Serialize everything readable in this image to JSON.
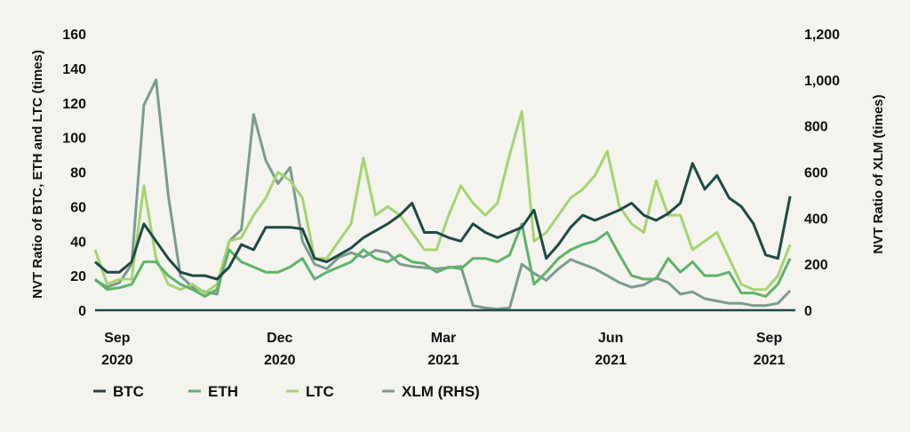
{
  "chart_data": {
    "type": "line",
    "title": "",
    "xlabel": "",
    "ylabel": "NVT Ratio of BTC, ETH and LTC (times)",
    "y2label": "NVT Ratio of XLM (times)",
    "ylim": [
      0,
      160
    ],
    "y2lim": [
      0,
      1200
    ],
    "xlim": [
      0,
      401
    ],
    "x_unit": "days from start of series",
    "yticks": [
      "0",
      "20",
      "40",
      "60",
      "80",
      "100",
      "120",
      "140",
      "160"
    ],
    "y2ticks": [
      "0",
      "200",
      "400",
      "600",
      "800",
      "1,000",
      "1,200"
    ],
    "xticks": [
      {
        "x": 12.7,
        "line1": "Sep",
        "line2": "2020"
      },
      {
        "x": 106,
        "line1": "Dec",
        "line2": "2020"
      },
      {
        "x": 200,
        "line1": "Mar",
        "line2": "2021"
      },
      {
        "x": 296,
        "line1": "Jun",
        "line2": "2021"
      },
      {
        "x": 387,
        "line1": "Sep",
        "line2": "2021"
      }
    ],
    "grid": false,
    "legend_position": "bottom-left",
    "x": [
      0,
      7,
      14,
      21,
      28,
      35,
      42,
      49,
      56,
      63,
      70,
      77,
      84,
      91,
      98,
      105,
      112,
      119,
      126,
      133,
      140,
      147,
      154,
      161,
      168,
      175,
      182,
      189,
      196,
      203,
      210,
      217,
      224,
      231,
      238,
      245,
      252,
      259,
      266,
      273,
      280,
      287,
      294,
      301,
      308,
      315,
      322,
      329,
      336,
      343,
      350,
      357,
      364,
      371,
      378,
      385,
      392,
      399
    ],
    "series": [
      {
        "name": "BTC",
        "axis": "left",
        "color": "#1e4a44",
        "values": [
          28,
          22,
          22,
          28,
          50,
          40,
          30,
          22,
          20,
          20,
          18,
          25,
          38,
          35,
          48,
          48,
          48,
          47,
          30,
          28,
          32,
          36,
          42,
          46,
          50,
          55,
          62,
          45,
          45,
          42,
          40,
          50,
          45,
          42,
          45,
          48,
          58,
          30,
          38,
          48,
          55,
          52,
          55,
          58,
          62,
          55,
          52,
          56,
          62,
          85,
          70,
          78,
          65,
          60,
          50,
          32,
          30,
          66
        ]
      },
      {
        "name": "ETH",
        "axis": "left",
        "color": "#5db46a",
        "values": [
          18,
          12,
          13,
          15,
          28,
          28,
          20,
          15,
          12,
          8,
          12,
          35,
          28,
          25,
          22,
          22,
          25,
          30,
          18,
          22,
          25,
          28,
          35,
          30,
          28,
          32,
          28,
          27,
          22,
          25,
          24,
          30,
          30,
          28,
          32,
          50,
          15,
          22,
          30,
          35,
          38,
          40,
          45,
          32,
          20,
          18,
          18,
          30,
          22,
          28,
          20,
          20,
          22,
          10,
          10,
          8,
          15,
          30
        ]
      },
      {
        "name": "LTC",
        "axis": "left",
        "color": "#a6d470",
        "values": [
          35,
          15,
          18,
          18,
          72,
          30,
          15,
          12,
          15,
          10,
          15,
          40,
          42,
          55,
          65,
          80,
          75,
          65,
          30,
          30,
          40,
          50,
          88,
          55,
          60,
          55,
          45,
          35,
          35,
          55,
          72,
          62,
          55,
          62,
          90,
          115,
          40,
          45,
          55,
          65,
          70,
          78,
          92,
          60,
          50,
          45,
          75,
          55,
          55,
          35,
          40,
          45,
          30,
          15,
          12,
          12,
          20,
          38
        ]
      },
      {
        "name": "XLM (RHS)",
        "axis": "right",
        "color": "#7b9b8f",
        "values": [
          130,
          100,
          120,
          200,
          890,
          1000,
          500,
          150,
          100,
          80,
          70,
          300,
          350,
          850,
          650,
          550,
          620,
          300,
          200,
          180,
          230,
          250,
          230,
          260,
          250,
          200,
          190,
          185,
          180,
          185,
          190,
          20,
          10,
          5,
          10,
          200,
          160,
          130,
          180,
          220,
          200,
          180,
          150,
          120,
          100,
          110,
          140,
          120,
          70,
          80,
          50,
          40,
          30,
          30,
          20,
          20,
          30,
          85
        ]
      }
    ]
  }
}
